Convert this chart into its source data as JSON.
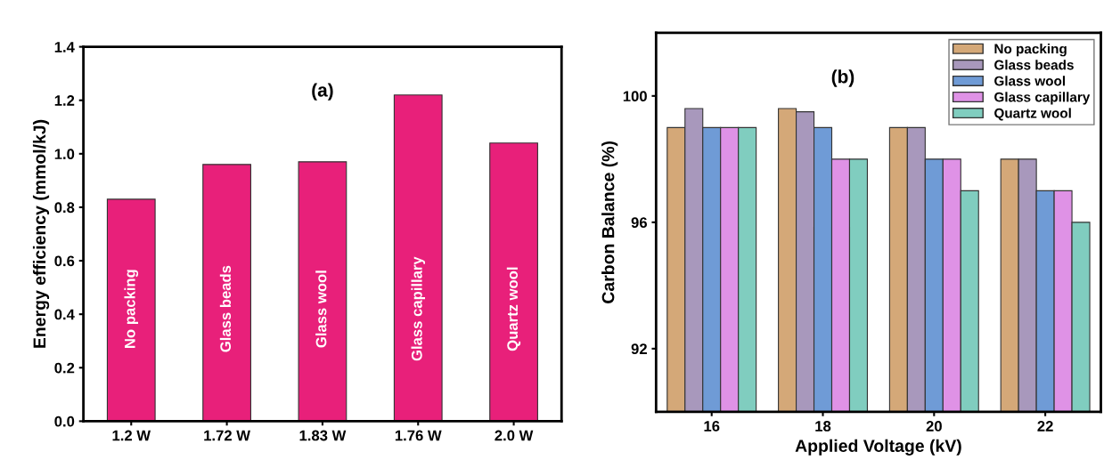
{
  "chart_data": [
    {
      "type": "bar",
      "ylabel": "Energy efficiency (mmol/kJ)",
      "categories": [
        "1.2 W",
        "1.72 W",
        "1.83 W",
        "1.76 W",
        "2.0 W"
      ],
      "values": [
        0.83,
        0.96,
        0.97,
        1.22,
        1.04
      ],
      "color": "#e8207a",
      "ylim": [
        0,
        1.4
      ],
      "yticks": [
        {
          "value": 0,
          "label": "0.0"
        },
        0.2,
        0.4,
        0.6,
        0.8,
        {
          "value": 1,
          "label": "1.0"
        },
        1.2,
        1.4
      ],
      "grid": false,
      "legend": false,
      "annotations": [
        "(a)",
        "No packing",
        "Glass beads",
        "Glass wool",
        "Glass capillary",
        "Quartz wool"
      ]
    },
    {
      "type": "bar",
      "xlabel": "Applied Voltage (kV)",
      "ylabel": "Carbon Balance (%)",
      "categories": [
        "16",
        "18",
        "20",
        "22"
      ],
      "ylim": [
        90,
        102
      ],
      "yticks": [
        92,
        96,
        100
      ],
      "grid": false,
      "legend": "top right",
      "annotations": [
        "(b)"
      ],
      "series": [
        {
          "name": "No packing",
          "color": "#d4a878",
          "values": [
            99,
            99.6,
            99,
            98
          ]
        },
        {
          "name": "Glass beads",
          "color": "#a898bc",
          "values": [
            99.6,
            99.5,
            99,
            98
          ]
        },
        {
          "name": "Glass wool",
          "color": "#6f9bd6",
          "values": [
            99,
            99,
            98,
            97
          ]
        },
        {
          "name": "Glass capillary",
          "color": "#df92e6",
          "values": [
            99,
            98,
            98,
            97
          ]
        },
        {
          "name": "Quartz wool",
          "color": "#80cdbf",
          "values": [
            99,
            98,
            97,
            96
          ]
        }
      ]
    }
  ]
}
